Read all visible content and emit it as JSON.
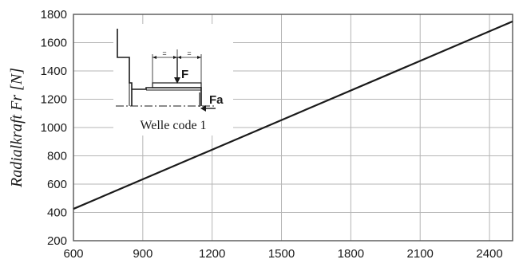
{
  "chart_data": {
    "type": "line",
    "ylabel": "Radialkraft Fr [N]",
    "xlabel": "",
    "xlim": [
      600,
      2500
    ],
    "ylim": [
      200,
      1800
    ],
    "xticks": [
      600,
      900,
      1200,
      1500,
      1800,
      2100,
      2400
    ],
    "yticks": [
      200,
      400,
      600,
      800,
      1000,
      1200,
      1400,
      1600,
      1800
    ],
    "grid": true,
    "series": [
      {
        "x": [
          600,
          2500
        ],
        "y": [
          425,
          1750
        ],
        "color": "#1a1a1a"
      }
    ],
    "inset": {
      "caption": "Welle code 1",
      "force_label": "F",
      "axial_label": "Fa",
      "dim_marks": [
        "=",
        "="
      ]
    }
  }
}
